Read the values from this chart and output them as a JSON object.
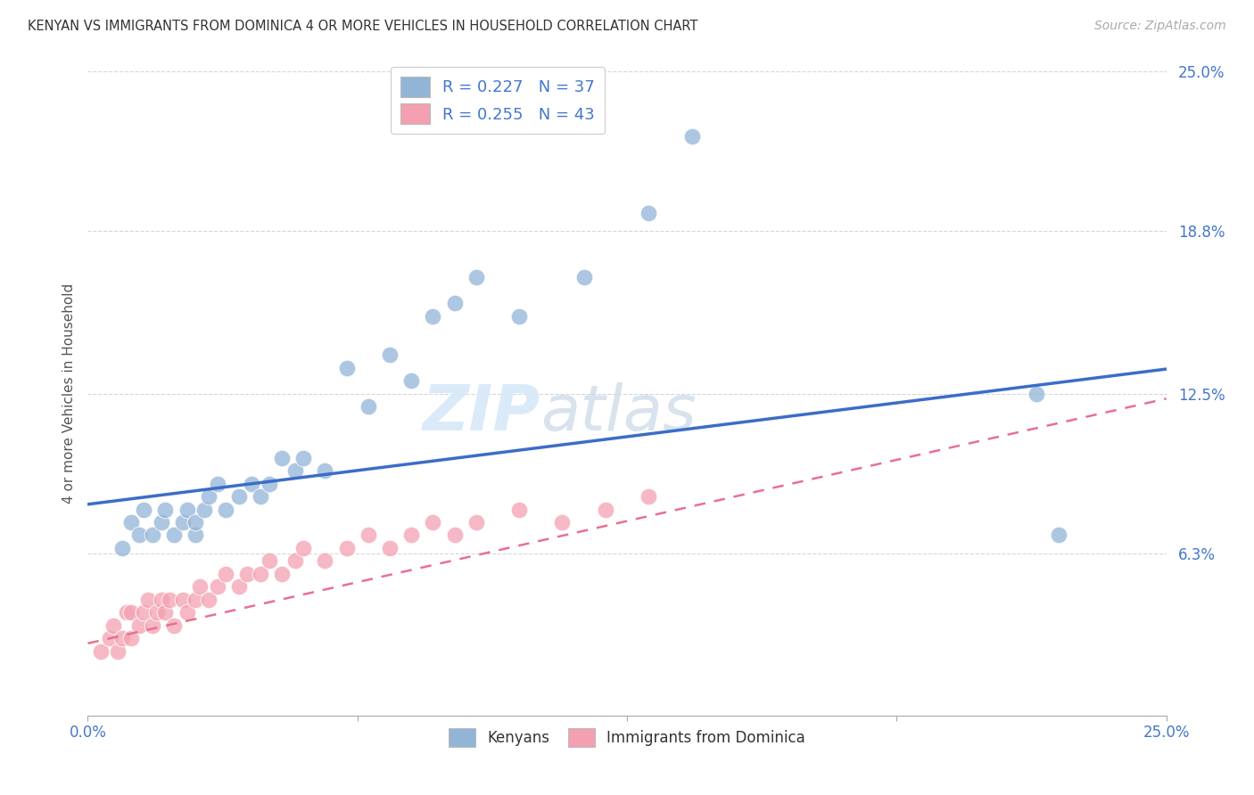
{
  "title": "KENYAN VS IMMIGRANTS FROM DOMINICA 4 OR MORE VEHICLES IN HOUSEHOLD CORRELATION CHART",
  "source": "Source: ZipAtlas.com",
  "ylabel": "4 or more Vehicles in Household",
  "xlim": [
    0.0,
    0.25
  ],
  "ylim": [
    0.0,
    0.25
  ],
  "ytick_positions": [
    0.0,
    0.063,
    0.125,
    0.188,
    0.25
  ],
  "ytick_labels": [
    "",
    "6.3%",
    "12.5%",
    "18.8%",
    "25.0%"
  ],
  "xtick_positions": [
    0.0,
    0.0625,
    0.125,
    0.1875,
    0.25
  ],
  "xticklabels": [
    "0.0%",
    "",
    "",
    "",
    "25.0%"
  ],
  "legend_r1": "R = 0.227",
  "legend_n1": "N = 37",
  "legend_r2": "R = 0.255",
  "legend_n2": "N = 43",
  "blue_color": "#92B4D7",
  "pink_color": "#F4A0B0",
  "blue_line_color": "#3B6DC8",
  "pink_line_color": "#E87090",
  "blue_x": [
    0.008,
    0.01,
    0.012,
    0.013,
    0.015,
    0.017,
    0.018,
    0.02,
    0.022,
    0.023,
    0.025,
    0.025,
    0.027,
    0.028,
    0.03,
    0.032,
    0.035,
    0.038,
    0.04,
    0.042,
    0.045,
    0.048,
    0.05,
    0.055,
    0.06,
    0.065,
    0.07,
    0.075,
    0.08,
    0.085,
    0.09,
    0.1,
    0.115,
    0.13,
    0.14,
    0.22,
    0.225
  ],
  "blue_y": [
    0.065,
    0.075,
    0.07,
    0.08,
    0.07,
    0.075,
    0.08,
    0.07,
    0.075,
    0.08,
    0.07,
    0.075,
    0.08,
    0.085,
    0.09,
    0.08,
    0.085,
    0.09,
    0.085,
    0.09,
    0.1,
    0.095,
    0.1,
    0.095,
    0.135,
    0.12,
    0.14,
    0.13,
    0.155,
    0.16,
    0.17,
    0.155,
    0.17,
    0.195,
    0.225,
    0.125,
    0.07
  ],
  "pink_x": [
    0.003,
    0.005,
    0.006,
    0.007,
    0.008,
    0.009,
    0.01,
    0.01,
    0.012,
    0.013,
    0.014,
    0.015,
    0.016,
    0.017,
    0.018,
    0.019,
    0.02,
    0.022,
    0.023,
    0.025,
    0.026,
    0.028,
    0.03,
    0.032,
    0.035,
    0.037,
    0.04,
    0.042,
    0.045,
    0.048,
    0.05,
    0.055,
    0.06,
    0.065,
    0.07,
    0.075,
    0.08,
    0.085,
    0.09,
    0.1,
    0.11,
    0.12,
    0.13
  ],
  "pink_y": [
    0.025,
    0.03,
    0.035,
    0.025,
    0.03,
    0.04,
    0.03,
    0.04,
    0.035,
    0.04,
    0.045,
    0.035,
    0.04,
    0.045,
    0.04,
    0.045,
    0.035,
    0.045,
    0.04,
    0.045,
    0.05,
    0.045,
    0.05,
    0.055,
    0.05,
    0.055,
    0.055,
    0.06,
    0.055,
    0.06,
    0.065,
    0.06,
    0.065,
    0.07,
    0.065,
    0.07,
    0.075,
    0.07,
    0.075,
    0.08,
    0.075,
    0.08,
    0.085
  ],
  "blue_line_intercept": 0.082,
  "blue_line_slope": 0.21,
  "pink_line_intercept": 0.028,
  "pink_line_slope": 0.38,
  "background_color": "#FFFFFF",
  "grid_color": "#CCCCCC"
}
